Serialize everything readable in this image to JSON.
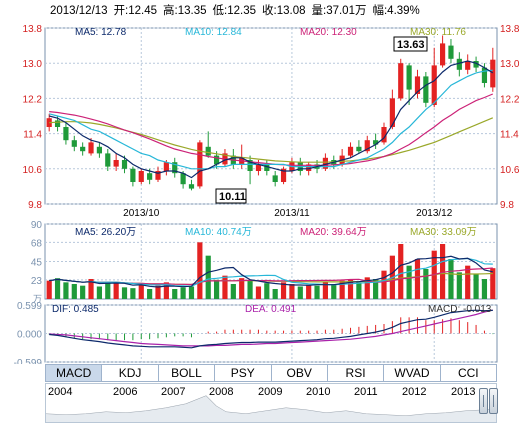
{
  "header": {
    "date": "2013/12/13",
    "open": "开:12.45",
    "high": "高:13.35",
    "low": "低:12.35",
    "close": "收:13.08",
    "volume": "量:37.01万",
    "change": "幅:4.39%"
  },
  "colors": {
    "up": "#e32222",
    "down": "#1f9a3a",
    "ma5": "#0d2a6b",
    "ma10": "#27b7d8",
    "ma20": "#cc2277",
    "ma30": "#9aa82a",
    "grid": "#b8c8db",
    "axis": "#7a92ae"
  },
  "main_legend": {
    "ma5": "MA5: 12.78",
    "ma10": "MA10: 12.84",
    "ma20": "MA20: 12.30",
    "ma30": "MA30: 11.76"
  },
  "volume_legend": {
    "ma5": "MA5: 26.20万",
    "ma10": "MA10: 40.74万",
    "ma20": "MA20: 39.64万",
    "ma30": "MA30: 33.09万"
  },
  "macd_legend": {
    "dif": "DIF: 0.485",
    "dea": "DEA: 0.491",
    "macd": "MACD: -0.013"
  },
  "volume_unit": "万",
  "annotations": {
    "high_label": "13.63",
    "low_label": "10.11"
  },
  "tabs": [
    "MACD",
    "KDJ",
    "BOLL",
    "PSY",
    "OBV",
    "RSI",
    "WVAD",
    "CCI"
  ],
  "navigator_years": [
    "2004",
    "2006",
    "2007",
    "2008",
    "2009",
    "2010",
    "2011",
    "2012",
    "2013"
  ],
  "chart_data": [
    {
      "type": "candlestick",
      "title": "",
      "ylim": [
        9.8,
        13.8
      ],
      "y_ticks": [
        13.8,
        13.0,
        12.2,
        11.4,
        10.6,
        9.8
      ],
      "x_labels": [
        "2013/10",
        "2013/11",
        "2013/12"
      ],
      "candles": [
        {
          "o": 11.55,
          "c": 11.75,
          "h": 11.85,
          "l": 11.45
        },
        {
          "o": 11.7,
          "c": 11.55,
          "h": 11.8,
          "l": 11.45
        },
        {
          "o": 11.55,
          "c": 11.25,
          "h": 11.65,
          "l": 11.15
        },
        {
          "o": 11.25,
          "c": 11.1,
          "h": 11.35,
          "l": 11.0
        },
        {
          "o": 11.1,
          "c": 11.0,
          "h": 11.2,
          "l": 10.9
        },
        {
          "o": 10.95,
          "c": 11.2,
          "h": 11.3,
          "l": 10.9
        },
        {
          "o": 11.1,
          "c": 10.95,
          "h": 11.2,
          "l": 10.85
        },
        {
          "o": 10.95,
          "c": 10.65,
          "h": 11.05,
          "l": 10.55
        },
        {
          "o": 10.65,
          "c": 10.8,
          "h": 10.95,
          "l": 10.55
        },
        {
          "o": 10.8,
          "c": 10.6,
          "h": 10.9,
          "l": 10.5
        },
        {
          "o": 10.6,
          "c": 10.3,
          "h": 10.65,
          "l": 10.2
        },
        {
          "o": 10.3,
          "c": 10.55,
          "h": 10.6,
          "l": 10.25
        },
        {
          "o": 10.5,
          "c": 10.35,
          "h": 10.6,
          "l": 10.25
        },
        {
          "o": 10.35,
          "c": 10.55,
          "h": 10.65,
          "l": 10.3
        },
        {
          "o": 10.55,
          "c": 10.75,
          "h": 10.8,
          "l": 10.45
        },
        {
          "o": 10.75,
          "c": 10.5,
          "h": 10.85,
          "l": 10.4
        },
        {
          "o": 10.5,
          "c": 10.25,
          "h": 10.55,
          "l": 10.15
        },
        {
          "o": 10.25,
          "c": 10.15,
          "h": 10.35,
          "l": 10.11
        },
        {
          "o": 10.2,
          "c": 11.2,
          "h": 11.25,
          "l": 10.15
        },
        {
          "o": 11.1,
          "c": 10.9,
          "h": 11.45,
          "l": 10.85
        },
        {
          "o": 10.9,
          "c": 10.7,
          "h": 11.0,
          "l": 10.6
        },
        {
          "o": 10.7,
          "c": 10.95,
          "h": 11.05,
          "l": 10.65
        },
        {
          "o": 10.9,
          "c": 10.7,
          "h": 11.05,
          "l": 10.6
        },
        {
          "o": 10.7,
          "c": 10.85,
          "h": 11.15,
          "l": 10.6
        },
        {
          "o": 10.8,
          "c": 10.55,
          "h": 10.9,
          "l": 10.25
        },
        {
          "o": 10.55,
          "c": 10.7,
          "h": 10.8,
          "l": 10.45
        },
        {
          "o": 10.7,
          "c": 10.55,
          "h": 10.8,
          "l": 10.45
        },
        {
          "o": 10.45,
          "c": 10.3,
          "h": 10.55,
          "l": 10.2
        },
        {
          "o": 10.3,
          "c": 10.6,
          "h": 10.65,
          "l": 10.25
        },
        {
          "o": 10.55,
          "c": 10.75,
          "h": 10.85,
          "l": 10.5
        },
        {
          "o": 10.75,
          "c": 10.55,
          "h": 10.85,
          "l": 10.45
        },
        {
          "o": 10.55,
          "c": 10.7,
          "h": 10.75,
          "l": 10.45
        },
        {
          "o": 10.7,
          "c": 10.6,
          "h": 10.8,
          "l": 10.5
        },
        {
          "o": 10.6,
          "c": 10.85,
          "h": 10.95,
          "l": 10.55
        },
        {
          "o": 10.8,
          "c": 10.7,
          "h": 10.9,
          "l": 10.6
        },
        {
          "o": 10.7,
          "c": 10.9,
          "h": 11.05,
          "l": 10.65
        },
        {
          "o": 10.9,
          "c": 11.1,
          "h": 11.2,
          "l": 10.85
        },
        {
          "o": 11.1,
          "c": 11.0,
          "h": 11.25,
          "l": 10.95
        },
        {
          "o": 11.0,
          "c": 11.25,
          "h": 11.35,
          "l": 10.95
        },
        {
          "o": 11.25,
          "c": 11.15,
          "h": 11.4,
          "l": 11.05
        },
        {
          "o": 11.2,
          "c": 11.55,
          "h": 11.65,
          "l": 11.15
        },
        {
          "o": 11.55,
          "c": 12.2,
          "h": 12.4,
          "l": 11.5
        },
        {
          "o": 12.2,
          "c": 13.0,
          "h": 13.1,
          "l": 12.15
        },
        {
          "o": 12.95,
          "c": 12.4,
          "h": 13.0,
          "l": 12.05
        },
        {
          "o": 12.3,
          "c": 12.7,
          "h": 12.85,
          "l": 12.2
        },
        {
          "o": 12.7,
          "c": 12.1,
          "h": 12.8,
          "l": 12.0
        },
        {
          "o": 12.05,
          "c": 12.95,
          "h": 13.35,
          "l": 12.0
        },
        {
          "o": 12.95,
          "c": 13.45,
          "h": 13.63,
          "l": 12.9
        },
        {
          "o": 13.4,
          "c": 13.1,
          "h": 13.55,
          "l": 13.0
        },
        {
          "o": 13.1,
          "c": 12.85,
          "h": 13.25,
          "l": 12.7
        },
        {
          "o": 12.85,
          "c": 13.05,
          "h": 13.2,
          "l": 12.75
        },
        {
          "o": 13.05,
          "c": 12.9,
          "h": 13.15,
          "l": 12.8
        },
        {
          "o": 12.9,
          "c": 12.55,
          "h": 13.0,
          "l": 12.45
        },
        {
          "o": 12.45,
          "c": 13.08,
          "h": 13.35,
          "l": 12.35
        }
      ],
      "ma5": [
        11.8,
        11.75,
        11.65,
        11.5,
        11.35,
        11.25,
        11.2,
        11.1,
        10.95,
        10.85,
        10.7,
        10.6,
        10.55,
        10.5,
        10.55,
        10.55,
        10.5,
        10.4,
        10.55,
        10.6,
        10.7,
        10.8,
        10.85,
        10.85,
        10.75,
        10.7,
        10.65,
        10.6,
        10.55,
        10.55,
        10.6,
        10.6,
        10.65,
        10.7,
        10.75,
        10.8,
        10.85,
        10.95,
        11.05,
        11.15,
        11.3,
        11.6,
        11.95,
        12.15,
        12.35,
        12.5,
        12.6,
        12.8,
        12.95,
        13.0,
        13.05,
        13.0,
        12.9,
        12.78
      ],
      "ma10": [
        11.85,
        11.8,
        11.75,
        11.7,
        11.6,
        11.5,
        11.45,
        11.35,
        11.25,
        11.15,
        11.05,
        10.95,
        10.9,
        10.8,
        10.75,
        10.7,
        10.65,
        10.6,
        10.6,
        10.6,
        10.65,
        10.65,
        10.7,
        10.7,
        10.7,
        10.7,
        10.7,
        10.7,
        10.7,
        10.65,
        10.65,
        10.65,
        10.65,
        10.65,
        10.65,
        10.7,
        10.75,
        10.8,
        10.85,
        10.95,
        11.05,
        11.2,
        11.4,
        11.55,
        11.75,
        11.95,
        12.1,
        12.3,
        12.5,
        12.6,
        12.7,
        12.78,
        12.82,
        12.84
      ],
      "ma20": [
        11.9,
        11.88,
        11.85,
        11.82,
        11.78,
        11.73,
        11.68,
        11.62,
        11.55,
        11.48,
        11.42,
        11.35,
        11.28,
        11.2,
        11.12,
        11.05,
        11.0,
        10.95,
        10.92,
        10.88,
        10.85,
        10.82,
        10.8,
        10.78,
        10.76,
        10.74,
        10.72,
        10.7,
        10.69,
        10.68,
        10.68,
        10.68,
        10.68,
        10.68,
        10.69,
        10.7,
        10.72,
        10.75,
        10.78,
        10.82,
        10.88,
        10.95,
        11.05,
        11.15,
        11.28,
        11.42,
        11.55,
        11.7,
        11.82,
        11.95,
        12.05,
        12.15,
        12.22,
        12.3
      ],
      "ma30": [
        11.65,
        11.66,
        11.67,
        11.67,
        11.66,
        11.64,
        11.61,
        11.57,
        11.53,
        11.48,
        11.43,
        11.38,
        11.32,
        11.26,
        11.2,
        11.14,
        11.09,
        11.04,
        11.0,
        10.97,
        10.94,
        10.91,
        10.88,
        10.86,
        10.84,
        10.82,
        10.8,
        10.78,
        10.77,
        10.76,
        10.75,
        10.75,
        10.75,
        10.75,
        10.76,
        10.77,
        10.78,
        10.8,
        10.82,
        10.85,
        10.88,
        10.92,
        10.97,
        11.02,
        11.08,
        11.14,
        11.2,
        11.28,
        11.36,
        11.44,
        11.52,
        11.6,
        11.68,
        11.76
      ]
    },
    {
      "type": "bar",
      "title": "",
      "ylabel": "万",
      "ylim": [
        0,
        90
      ],
      "y_ticks": [
        90,
        68,
        45,
        23
      ],
      "values": [
        22,
        25,
        20,
        18,
        16,
        24,
        15,
        21,
        20,
        14,
        13,
        17,
        12,
        16,
        20,
        12,
        14,
        15,
        68,
        52,
        23,
        28,
        18,
        25,
        22,
        15,
        19,
        12,
        20,
        18,
        15,
        17,
        16,
        20,
        18,
        22,
        24,
        20,
        26,
        24,
        34,
        52,
        66,
        40,
        48,
        36,
        58,
        66,
        48,
        32,
        40,
        30,
        24,
        37
      ]
    },
    {
      "type": "bar_line",
      "title": "",
      "ylim": [
        -0.599,
        0.599
      ],
      "y_ticks": [
        0.599,
        0.0,
        -0.599
      ],
      "dif": [
        -0.02,
        -0.04,
        -0.07,
        -0.1,
        -0.13,
        -0.15,
        -0.17,
        -0.2,
        -0.22,
        -0.24,
        -0.26,
        -0.27,
        -0.28,
        -0.28,
        -0.28,
        -0.28,
        -0.29,
        -0.3,
        -0.26,
        -0.24,
        -0.23,
        -0.21,
        -0.2,
        -0.19,
        -0.19,
        -0.18,
        -0.18,
        -0.18,
        -0.17,
        -0.16,
        -0.15,
        -0.14,
        -0.13,
        -0.11,
        -0.1,
        -0.08,
        -0.06,
        -0.03,
        0.0,
        0.03,
        0.07,
        0.13,
        0.21,
        0.25,
        0.29,
        0.3,
        0.34,
        0.39,
        0.44,
        0.46,
        0.48,
        0.49,
        0.48,
        0.485
      ],
      "dea": [
        -0.01,
        -0.02,
        -0.03,
        -0.05,
        -0.07,
        -0.09,
        -0.11,
        -0.13,
        -0.15,
        -0.17,
        -0.19,
        -0.21,
        -0.22,
        -0.23,
        -0.24,
        -0.25,
        -0.26,
        -0.26,
        -0.26,
        -0.26,
        -0.25,
        -0.25,
        -0.24,
        -0.23,
        -0.23,
        -0.22,
        -0.21,
        -0.21,
        -0.2,
        -0.19,
        -0.18,
        -0.17,
        -0.16,
        -0.15,
        -0.14,
        -0.13,
        -0.12,
        -0.1,
        -0.08,
        -0.06,
        -0.03,
        0.0,
        0.04,
        0.08,
        0.12,
        0.16,
        0.2,
        0.24,
        0.28,
        0.32,
        0.36,
        0.4,
        0.45,
        0.491
      ],
      "macd": [
        -0.02,
        -0.04,
        -0.08,
        -0.1,
        -0.12,
        -0.12,
        -0.12,
        -0.14,
        -0.14,
        -0.14,
        -0.14,
        -0.12,
        -0.12,
        -0.1,
        -0.08,
        -0.06,
        -0.06,
        -0.08,
        0.0,
        0.04,
        0.04,
        0.08,
        0.08,
        0.08,
        0.08,
        0.08,
        0.06,
        0.06,
        0.06,
        0.06,
        0.06,
        0.06,
        0.06,
        0.08,
        0.08,
        0.1,
        0.12,
        0.14,
        0.16,
        0.18,
        0.2,
        0.26,
        0.34,
        0.34,
        0.34,
        0.28,
        0.28,
        0.3,
        0.32,
        0.28,
        0.24,
        0.18,
        0.06,
        -0.013
      ]
    }
  ]
}
